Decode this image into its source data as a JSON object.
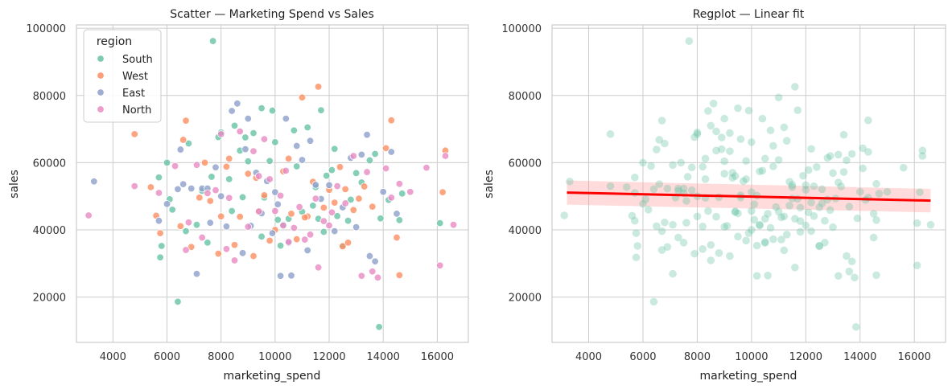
{
  "colors": {
    "South": "#66c2a5",
    "West": "#fc8d62",
    "East": "#8da0cb",
    "North": "#e78ac3",
    "fit_line": "#ff0000",
    "fit_band": "#ff9999",
    "grid": "#cccccc"
  },
  "chart_data": [
    {
      "type": "scatter",
      "title": "Scatter — Marketing Spend vs Sales",
      "xlabel": "marketing_spend",
      "ylabel": "sales",
      "xlim": [
        2650,
        17150
      ],
      "ylim": [
        6500,
        101000
      ],
      "xticks": [
        "4000",
        "6000",
        "8000",
        "10000",
        "12000",
        "14000",
        "16000"
      ],
      "xtick_values": [
        4000,
        6000,
        8000,
        10000,
        12000,
        14000,
        16000
      ],
      "yticks": [
        "20000",
        "40000",
        "60000",
        "80000",
        "100000"
      ],
      "ytick_values": [
        20000,
        40000,
        60000,
        80000,
        100000
      ],
      "grid": true,
      "legend": {
        "title": "region",
        "placement": "top-left",
        "entries": [
          "South",
          "West",
          "East",
          "North"
        ]
      },
      "series": [
        {
          "name": "South",
          "points": [
            [
              7700,
              96200
            ],
            [
              6400,
              18600
            ],
            [
              13850,
              11100
            ],
            [
              5700,
              55600
            ],
            [
              5800,
              35200
            ],
            [
              5750,
              31800
            ],
            [
              6000,
              60000
            ],
            [
              6100,
              49100
            ],
            [
              6200,
              46000
            ],
            [
              6700,
              39600
            ],
            [
              6800,
              65700
            ],
            [
              7300,
              51600
            ],
            [
              7500,
              36200
            ],
            [
              7650,
              55800
            ],
            [
              7900,
              67600
            ],
            [
              8000,
              69000
            ],
            [
              8300,
              55100
            ],
            [
              8500,
              71000
            ],
            [
              8700,
              63600
            ],
            [
              8900,
              67500
            ],
            [
              9000,
              60400
            ],
            [
              9200,
              68800
            ],
            [
              9500,
              76200
            ],
            [
              9600,
              49600
            ],
            [
              9800,
              60500
            ],
            [
              9900,
              75500
            ],
            [
              10000,
              66100
            ],
            [
              10100,
              43000
            ],
            [
              10300,
              41500
            ],
            [
              10500,
              43300
            ],
            [
              10700,
              69600
            ],
            [
              10800,
              58900
            ],
            [
              11000,
              45400
            ],
            [
              11200,
              70500
            ],
            [
              11400,
              47200
            ],
            [
              11500,
              52700
            ],
            [
              11600,
              43300
            ],
            [
              11700,
              75600
            ],
            [
              11800,
              39400
            ],
            [
              11900,
              56100
            ],
            [
              12100,
              57800
            ],
            [
              12300,
              44100
            ],
            [
              12500,
              35300
            ],
            [
              12700,
              42700
            ],
            [
              12800,
              49000
            ],
            [
              13000,
              56900
            ],
            [
              13200,
              54100
            ],
            [
              13500,
              60700
            ],
            [
              13700,
              62600
            ],
            [
              13900,
              43400
            ],
            [
              14200,
              48900
            ],
            [
              14600,
              42900
            ],
            [
              14700,
              50800
            ],
            [
              16100,
              42000
            ],
            [
              9500,
              38000
            ],
            [
              8400,
              45600
            ],
            [
              10200,
              35300
            ],
            [
              12200,
              64100
            ],
            [
              8800,
              49700
            ],
            [
              7100,
              41500
            ]
          ]
        },
        {
          "name": "West",
          "points": [
            [
              4800,
              68500
            ],
            [
              5400,
              52700
            ],
            [
              5600,
              44200
            ],
            [
              5750,
              39000
            ],
            [
              6500,
              41100
            ],
            [
              6600,
              66800
            ],
            [
              6700,
              72500
            ],
            [
              6900,
              34900
            ],
            [
              7200,
              49600
            ],
            [
              7400,
              60000
            ],
            [
              7600,
              48600
            ],
            [
              7900,
              32900
            ],
            [
              8000,
              44000
            ],
            [
              8200,
              58800
            ],
            [
              8500,
              35500
            ],
            [
              8700,
              43900
            ],
            [
              9000,
              56700
            ],
            [
              9200,
              32200
            ],
            [
              9400,
              45300
            ],
            [
              9600,
              50300
            ],
            [
              9800,
              36800
            ],
            [
              10000,
              40000
            ],
            [
              10300,
              57400
            ],
            [
              10500,
              61200
            ],
            [
              10800,
              37200
            ],
            [
              11000,
              79400
            ],
            [
              11200,
              44000
            ],
            [
              11400,
              54300
            ],
            [
              11600,
              82600
            ],
            [
              11800,
              46600
            ],
            [
              12000,
              51900
            ],
            [
              12200,
              48100
            ],
            [
              12400,
              58700
            ],
            [
              12500,
              35100
            ],
            [
              12700,
              36200
            ],
            [
              12900,
              45900
            ],
            [
              13100,
              49300
            ],
            [
              13300,
              52900
            ],
            [
              13600,
              46900
            ],
            [
              14100,
              64300
            ],
            [
              14300,
              72600
            ],
            [
              14500,
              37700
            ],
            [
              14600,
              26500
            ],
            [
              16200,
              51200
            ],
            [
              16300,
              63600
            ],
            [
              9300,
              55500
            ],
            [
              10600,
              44800
            ],
            [
              11100,
              43700
            ],
            [
              12600,
              52100
            ],
            [
              8300,
              61200
            ]
          ]
        },
        {
          "name": "East",
          "points": [
            [
              3300,
              54400
            ],
            [
              5700,
              42700
            ],
            [
              6000,
              47700
            ],
            [
              6400,
              52100
            ],
            [
              6500,
              63900
            ],
            [
              6600,
              53600
            ],
            [
              6900,
              52300
            ],
            [
              7100,
              26900
            ],
            [
              7300,
              52300
            ],
            [
              7500,
              52300
            ],
            [
              7600,
              42100
            ],
            [
              7800,
              58600
            ],
            [
              8000,
              50000
            ],
            [
              8200,
              41000
            ],
            [
              8400,
              75400
            ],
            [
              8600,
              77600
            ],
            [
              8800,
              33100
            ],
            [
              9000,
              73100
            ],
            [
              9100,
              41200
            ],
            [
              9300,
              57000
            ],
            [
              9500,
              44900
            ],
            [
              9700,
              54500
            ],
            [
              9900,
              39000
            ],
            [
              10000,
              51200
            ],
            [
              10100,
              47600
            ],
            [
              10200,
              26300
            ],
            [
              10400,
              73100
            ],
            [
              10600,
              26400
            ],
            [
              10800,
              65000
            ],
            [
              11000,
              60800
            ],
            [
              11200,
              33900
            ],
            [
              11500,
              53400
            ],
            [
              11700,
              49200
            ],
            [
              12000,
              53300
            ],
            [
              12200,
              39600
            ],
            [
              12500,
              46700
            ],
            [
              12800,
              61400
            ],
            [
              13000,
              40800
            ],
            [
              13200,
              62400
            ],
            [
              13400,
              68300
            ],
            [
              13500,
              32200
            ],
            [
              13700,
              30600
            ],
            [
              14000,
              51300
            ],
            [
              14300,
              63200
            ],
            [
              14500,
              44800
            ],
            [
              8900,
              64000
            ],
            [
              10500,
              36100
            ],
            [
              11300,
              66500
            ]
          ]
        },
        {
          "name": "North",
          "points": [
            [
              3100,
              44300
            ],
            [
              4800,
              53000
            ],
            [
              5700,
              51000
            ],
            [
              6300,
              59000
            ],
            [
              6700,
              34000
            ],
            [
              6800,
              42200
            ],
            [
              7100,
              59300
            ],
            [
              7500,
              50900
            ],
            [
              7800,
              51800
            ],
            [
              8000,
              68500
            ],
            [
              8200,
              34300
            ],
            [
              8500,
              30900
            ],
            [
              8700,
              69300
            ],
            [
              9000,
              40900
            ],
            [
              9200,
              63400
            ],
            [
              9400,
              56000
            ],
            [
              9600,
              67000
            ],
            [
              9800,
              55100
            ],
            [
              10000,
              45600
            ],
            [
              10200,
              50200
            ],
            [
              10400,
              57600
            ],
            [
              10500,
              36400
            ],
            [
              10700,
              40600
            ],
            [
              10900,
              46800
            ],
            [
              11100,
              37100
            ],
            [
              11300,
              38600
            ],
            [
              11600,
              28800
            ],
            [
              11800,
              42600
            ],
            [
              12000,
              41300
            ],
            [
              12300,
              53000
            ],
            [
              12600,
              47900
            ],
            [
              12900,
              62000
            ],
            [
              13200,
              26300
            ],
            [
              13400,
              57200
            ],
            [
              13600,
              27600
            ],
            [
              13800,
              25800
            ],
            [
              14100,
              58300
            ],
            [
              14300,
              49600
            ],
            [
              14600,
              53700
            ],
            [
              15000,
              51300
            ],
            [
              15600,
              58500
            ],
            [
              16100,
              29400
            ],
            [
              16300,
              62000
            ],
            [
              16600,
              41500
            ],
            [
              9400,
              45500
            ],
            [
              11500,
              49300
            ],
            [
              7300,
              37700
            ],
            [
              12100,
              45200
            ],
            [
              8300,
              49500
            ],
            [
              10300,
              41300
            ]
          ]
        }
      ]
    },
    {
      "type": "scatter",
      "title": "Regplot — Linear fit",
      "xlabel": "marketing_spend",
      "ylabel": "sales",
      "xlim": [
        2650,
        17150
      ],
      "ylim": [
        6500,
        101000
      ],
      "xticks": [
        "4000",
        "6000",
        "8000",
        "10000",
        "12000",
        "14000",
        "16000"
      ],
      "xtick_values": [
        4000,
        6000,
        8000,
        10000,
        12000,
        14000,
        16000
      ],
      "yticks": [
        "20000",
        "40000",
        "60000",
        "80000",
        "100000"
      ],
      "ytick_values": [
        20000,
        40000,
        60000,
        80000,
        100000
      ],
      "grid": true,
      "points_source": "all",
      "fit": {
        "x": [
          3200,
          16600
        ],
        "y": [
          51100,
          48700
        ],
        "ci_lower": [
          47500,
          45200
        ],
        "ci_upper": [
          54700,
          52200
        ]
      }
    }
  ]
}
